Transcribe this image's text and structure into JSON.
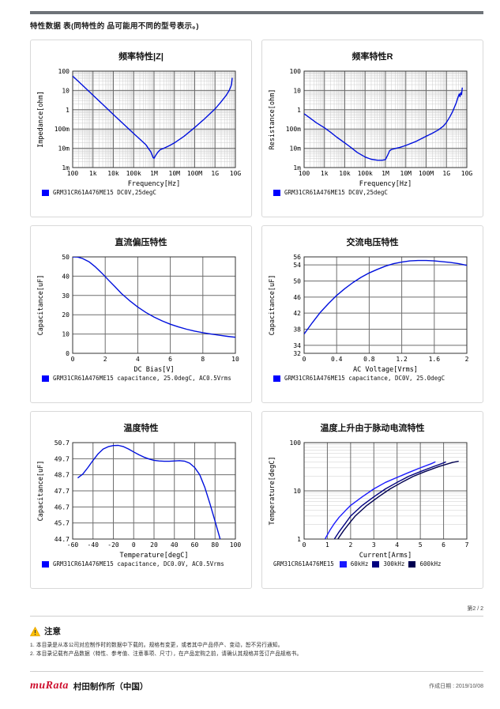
{
  "page": {
    "header_title": "特性数据 表(同特性的 品可能用不同的型号表示。)",
    "page_number": "第2 / 2",
    "notice": {
      "title": "注意",
      "items": [
        "1. 本目录是从本公司对应制作时的数据中下载的。规格有变更，或者其中产品停产、变动，恕不另行通知。",
        "2. 本目录记载有产品数据（特性、参考值、注意事项、尺寸），在产品定购之前，请确认其规格并签订产品规格书。"
      ]
    },
    "footer": {
      "logo_text": "muRata",
      "company": "村田制作所（中国）",
      "date_label": "作成日期 : 2019/10/08"
    }
  },
  "chart_data": [
    {
      "type": "line",
      "title": "频率特性|Z|",
      "xlabel": "Frequency[Hz]",
      "ylabel": "Impedance[ohm]",
      "xscale": "log",
      "yscale": "log",
      "xlim": [
        100,
        10000000000
      ],
      "ylim": [
        0.001,
        100
      ],
      "xticks": {
        "values": [
          100,
          1000,
          10000,
          100000,
          1000000,
          10000000,
          100000000,
          1000000000,
          10000000000
        ],
        "labels": [
          "100",
          "1k",
          "10k",
          "100k",
          "1M",
          "10M",
          "100M",
          "1G",
          "10G"
        ]
      },
      "yticks": {
        "values": [
          0.001,
          0.01,
          0.1,
          1,
          10,
          100
        ],
        "labels": [
          "1m",
          "10m",
          "100m",
          "1",
          "10",
          "100"
        ]
      },
      "series": [
        {
          "name": "GRM31CR61A476ME15 DC0V,25degC",
          "color": "#0010dd",
          "x": [
            100,
            200,
            400,
            1000,
            3000,
            10000,
            30000,
            100000,
            200000,
            400000,
            700000,
            900000,
            1000000,
            1200000,
            1500000,
            2000000,
            3000000,
            6000000,
            10000000,
            30000000,
            100000000,
            300000000,
            1000000000,
            2000000000,
            3500000000,
            5000000000,
            6000000000,
            6500000000,
            7000000000
          ],
          "y": [
            55,
            28,
            14,
            5.6,
            1.9,
            0.56,
            0.19,
            0.058,
            0.03,
            0.015,
            0.0065,
            0.0033,
            0.003,
            0.0042,
            0.006,
            0.0085,
            0.01,
            0.014,
            0.019,
            0.042,
            0.12,
            0.33,
            1.1,
            2.6,
            5.5,
            10,
            16,
            22,
            45
          ]
        }
      ],
      "legend": [
        {
          "color": "#0000ff",
          "label": "GRM31CR61A476ME15 DC0V,25degC"
        }
      ]
    },
    {
      "type": "line",
      "title": "频率特性R",
      "xlabel": "Frequency[Hz]",
      "ylabel": "Resistance[ohm]",
      "xscale": "log",
      "yscale": "log",
      "xlim": [
        100,
        10000000000
      ],
      "ylim": [
        0.001,
        100
      ],
      "xticks": {
        "values": [
          100,
          1000,
          10000,
          100000,
          1000000,
          10000000,
          100000000,
          1000000000,
          10000000000
        ],
        "labels": [
          "100",
          "1k",
          "10k",
          "100k",
          "1M",
          "10M",
          "100M",
          "1G",
          "10G"
        ]
      },
      "yticks": {
        "values": [
          0.001,
          0.01,
          0.1,
          1,
          10,
          100
        ],
        "labels": [
          "1m",
          "10m",
          "100m",
          "1",
          "10",
          "100"
        ]
      },
      "series": [
        {
          "name": "GRM31CR61A476ME15 DC0V,25degC",
          "color": "#0010dd",
          "x": [
            100,
            200,
            400,
            1000,
            2000,
            4000,
            10000,
            20000,
            40000,
            100000,
            200000,
            400000,
            700000,
            1000000,
            1300000,
            1600000,
            2000000,
            2500000,
            3000000,
            5000000,
            10000000,
            30000000,
            100000000,
            200000000,
            400000000,
            700000000,
            1000000000,
            1500000000,
            2000000000,
            3000000000,
            3700000000,
            4200000000,
            4600000000,
            5000000000,
            5500000000,
            6000000000
          ],
          "y": [
            0.62,
            0.36,
            0.21,
            0.115,
            0.068,
            0.038,
            0.019,
            0.011,
            0.0062,
            0.0035,
            0.0027,
            0.0024,
            0.0024,
            0.0026,
            0.0045,
            0.0075,
            0.0088,
            0.0093,
            0.0098,
            0.011,
            0.014,
            0.022,
            0.042,
            0.06,
            0.09,
            0.14,
            0.22,
            0.45,
            0.8,
            2.2,
            4.5,
            6.5,
            4.8,
            7.5,
            6.0,
            14
          ]
        }
      ],
      "legend": [
        {
          "color": "#0000ff",
          "label": "GRM31CR61A476ME15 DC0V,25degC"
        }
      ]
    },
    {
      "type": "line",
      "title": "直流偏压特性",
      "xlabel": "DC Bias[V]",
      "ylabel": "Capacitance[uF]",
      "xscale": "linear",
      "yscale": "linear",
      "xlim": [
        0,
        10
      ],
      "ylim": [
        0,
        50
      ],
      "xticks": {
        "values": [
          0,
          2,
          4,
          6,
          8,
          10
        ],
        "labels": [
          "0",
          "2",
          "4",
          "6",
          "8",
          "10"
        ]
      },
      "yticks": {
        "values": [
          0,
          10,
          20,
          30,
          40,
          50
        ],
        "labels": [
          "0",
          "10",
          "20",
          "30",
          "40",
          "50"
        ]
      },
      "series": [
        {
          "name": "GRM31CR61A476ME15 capacitance, 25.0degC, AC0.5Vrms",
          "color": "#0010dd",
          "x": [
            0,
            0.3,
            0.6,
            1.0,
            1.4,
            1.8,
            2.2,
            2.6,
            3.0,
            3.5,
            4.0,
            4.5,
            5.0,
            5.5,
            6.0,
            6.5,
            7.0,
            7.5,
            8.0,
            8.5,
            9.0,
            9.5,
            10.0
          ],
          "y": [
            50,
            49.9,
            49.2,
            47.5,
            44.8,
            41.5,
            38.0,
            34.5,
            31.0,
            27.3,
            24.0,
            21.2,
            18.8,
            16.8,
            15.1,
            13.7,
            12.5,
            11.5,
            10.7,
            10.0,
            9.4,
            8.8,
            8.3
          ]
        }
      ],
      "legend": [
        {
          "color": "#0000ff",
          "label": "GRM31CR61A476ME15 capacitance, 25.0degC, AC0.5Vrms"
        }
      ]
    },
    {
      "type": "line",
      "title": "交流电压特性",
      "xlabel": "AC Voltage[Vrms]",
      "ylabel": "Capacitance[uF]",
      "xscale": "linear",
      "yscale": "linear",
      "xlim": [
        0,
        2
      ],
      "ylim": [
        32,
        56
      ],
      "xticks": {
        "values": [
          0,
          0.4,
          0.8,
          1.2,
          1.6,
          2
        ],
        "labels": [
          "0",
          "0.4",
          "0.8",
          "1.2",
          "1.6",
          "2"
        ]
      },
      "yticks": {
        "values": [
          32,
          34,
          38,
          42,
          46,
          50,
          54,
          56
        ],
        "labels": [
          "32",
          "34",
          "38",
          "42",
          "46",
          "50",
          "54",
          "56"
        ]
      },
      "series": [
        {
          "name": "GRM31CR61A476ME15 capacitance, DC0V, 25.0degC",
          "color": "#0010dd",
          "x": [
            0,
            0.1,
            0.2,
            0.3,
            0.4,
            0.5,
            0.6,
            0.7,
            0.8,
            0.9,
            1.0,
            1.1,
            1.2,
            1.3,
            1.4,
            1.5,
            1.6,
            1.7,
            1.8,
            1.9,
            2.0
          ],
          "y": [
            36.8,
            39.6,
            42.2,
            44.4,
            46.4,
            48.1,
            49.6,
            50.9,
            52.0,
            52.9,
            53.7,
            54.3,
            54.7,
            55.0,
            55.1,
            55.1,
            55.0,
            54.8,
            54.6,
            54.3,
            53.9
          ]
        }
      ],
      "legend": [
        {
          "color": "#0000ff",
          "label": "GRM31CR61A476ME15 capacitance, DC0V, 25.0degC"
        }
      ]
    },
    {
      "type": "line",
      "title": "温度特性",
      "xlabel": "Temperature[degC]",
      "ylabel": "Capacitance[uF]",
      "xscale": "linear",
      "yscale": "linear",
      "xlim": [
        -60,
        100
      ],
      "ylim": [
        44.7,
        50.7
      ],
      "xticks": {
        "values": [
          -60,
          -40,
          -20,
          0,
          20,
          40,
          60,
          80,
          100
        ],
        "labels": [
          "-60",
          "-40",
          "-20",
          "0",
          "20",
          "40",
          "60",
          "80",
          "100"
        ]
      },
      "yticks": {
        "values": [
          44.7,
          45.7,
          46.7,
          47.7,
          48.7,
          49.7,
          50.7
        ],
        "labels": [
          "44.7",
          "45.7",
          "46.7",
          "47.7",
          "48.7",
          "49.7",
          "50.7"
        ]
      },
      "series": [
        {
          "name": "GRM31CR61A476ME15 capacitance, DC0.0V, AC0.5Vrms",
          "color": "#0010dd",
          "x": [
            -55,
            -50,
            -45,
            -40,
            -35,
            -30,
            -25,
            -20,
            -15,
            -10,
            -5,
            0,
            5,
            10,
            15,
            20,
            25,
            30,
            35,
            40,
            45,
            50,
            55,
            60,
            65,
            70,
            75,
            80,
            85
          ],
          "y": [
            48.5,
            48.75,
            49.15,
            49.6,
            50.0,
            50.3,
            50.45,
            50.52,
            50.53,
            50.45,
            50.3,
            50.12,
            49.95,
            49.8,
            49.68,
            49.6,
            49.56,
            49.54,
            49.54,
            49.56,
            49.58,
            49.55,
            49.42,
            49.15,
            48.7,
            47.9,
            46.9,
            45.8,
            44.7
          ]
        }
      ],
      "legend": [
        {
          "color": "#0000ff",
          "label": "GRM31CR61A476ME15 capacitance, DC0.0V, AC0.5Vrms"
        }
      ]
    },
    {
      "type": "line",
      "title": "温度上升由于脉动电流特性",
      "xlabel": "Current[Arms]",
      "ylabel": "Temperature[degC]",
      "xscale": "linear",
      "yscale": "log",
      "xlim": [
        0,
        7
      ],
      "ylim": [
        1,
        100
      ],
      "xticks": {
        "values": [
          0,
          1,
          2,
          3,
          4,
          5,
          6,
          7
        ],
        "labels": [
          "0",
          "1",
          "2",
          "3",
          "4",
          "5",
          "6",
          "7"
        ]
      },
      "yticks": {
        "values": [
          1,
          10,
          100
        ],
        "labels": [
          "1",
          "10",
          "100"
        ]
      },
      "legend_prefix": "GRM31CR61A476ME15",
      "series": [
        {
          "name": "60kHz",
          "color": "#1a1aff",
          "x": [
            0.9,
            1.1,
            1.3,
            1.5,
            1.8,
            2.0,
            2.5,
            3.0,
            3.5,
            4.0,
            4.5,
            5.0,
            5.5,
            5.65
          ],
          "y": [
            1,
            1.5,
            2.1,
            2.8,
            4.0,
            5.0,
            7.5,
            11,
            15,
            19,
            24,
            30,
            37,
            40
          ]
        },
        {
          "name": "300kHz",
          "color": "#000080",
          "x": [
            1.3,
            1.5,
            1.8,
            2.0,
            2.5,
            3.0,
            3.5,
            4.0,
            4.5,
            5.0,
            5.5,
            6.0,
            6.1
          ],
          "y": [
            1,
            1.4,
            2.2,
            3.0,
            5.0,
            7.5,
            11,
            15,
            20,
            25,
            31,
            38,
            40
          ]
        },
        {
          "name": "600kHz",
          "color": "#000050",
          "x": [
            1.45,
            1.7,
            2.0,
            2.2,
            2.7,
            3.2,
            3.7,
            4.2,
            4.7,
            5.2,
            5.8,
            6.4,
            6.65
          ],
          "y": [
            1,
            1.5,
            2.3,
            3.0,
            5.0,
            7.5,
            11,
            15,
            20,
            25,
            32,
            39,
            41
          ]
        }
      ],
      "legend": [
        {
          "color": "#1a1aff",
          "label": "60kHz"
        },
        {
          "color": "#000080",
          "label": "300kHz"
        },
        {
          "color": "#000050",
          "label": "600kHz"
        }
      ]
    }
  ]
}
